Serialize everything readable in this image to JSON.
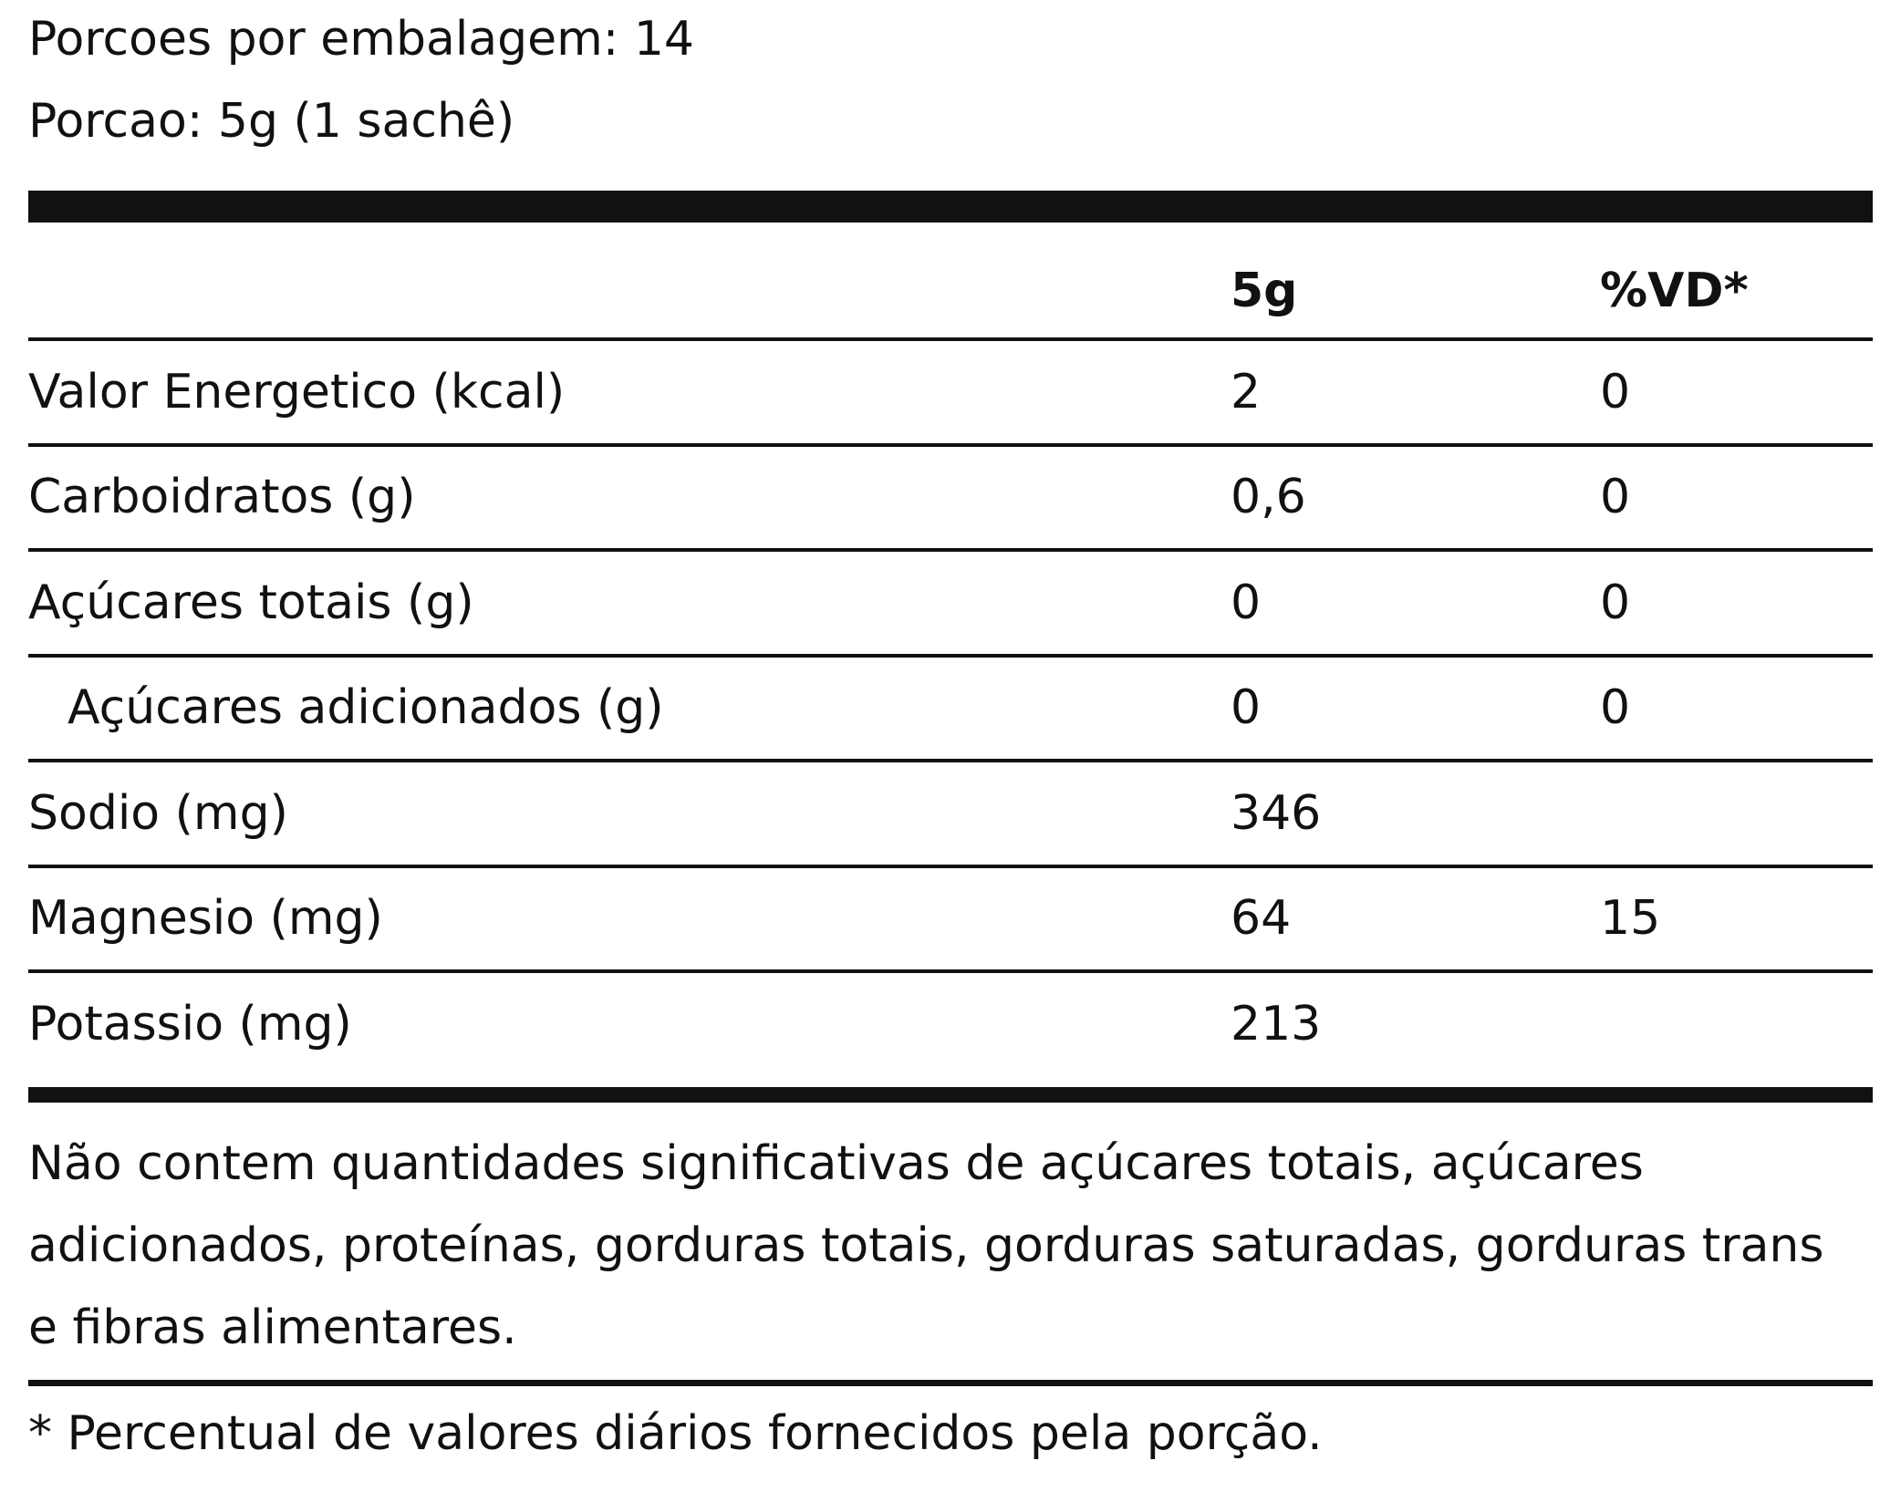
{
  "header": {
    "servings": "Porcoes por embalagem: 14",
    "portion": "Porcao: 5g (1 sachê)"
  },
  "table": {
    "columns": [
      "5g",
      "%VD*"
    ],
    "rows": [
      {
        "label": "Valor Energetico (kcal)",
        "amount": "2",
        "vd": "0"
      },
      {
        "label": "Carboidratos (g)",
        "amount": "0,6",
        "vd": "0"
      },
      {
        "label": "Açúcares totais (g)",
        "amount": "0",
        "vd": "0"
      },
      {
        "label": "Açúcares adicionados (g)",
        "amount": "0",
        "vd": "0",
        "indent": true
      },
      {
        "label": "Sodio (mg)",
        "amount": "346"
      },
      {
        "label": "Magnesio (mg)",
        "amount": "64",
        "vd": "15"
      },
      {
        "label": "Potassio (mg)",
        "amount": "213"
      }
    ]
  },
  "footer": {
    "note": "Não contem quantidades significativas de açúcares totais, açúcares adicionados, proteínas, gorduras totais, gorduras saturadas, gorduras trans e fibras alimentares.",
    "footnote": "* Percentual de valores diários fornecidos pela porção."
  }
}
